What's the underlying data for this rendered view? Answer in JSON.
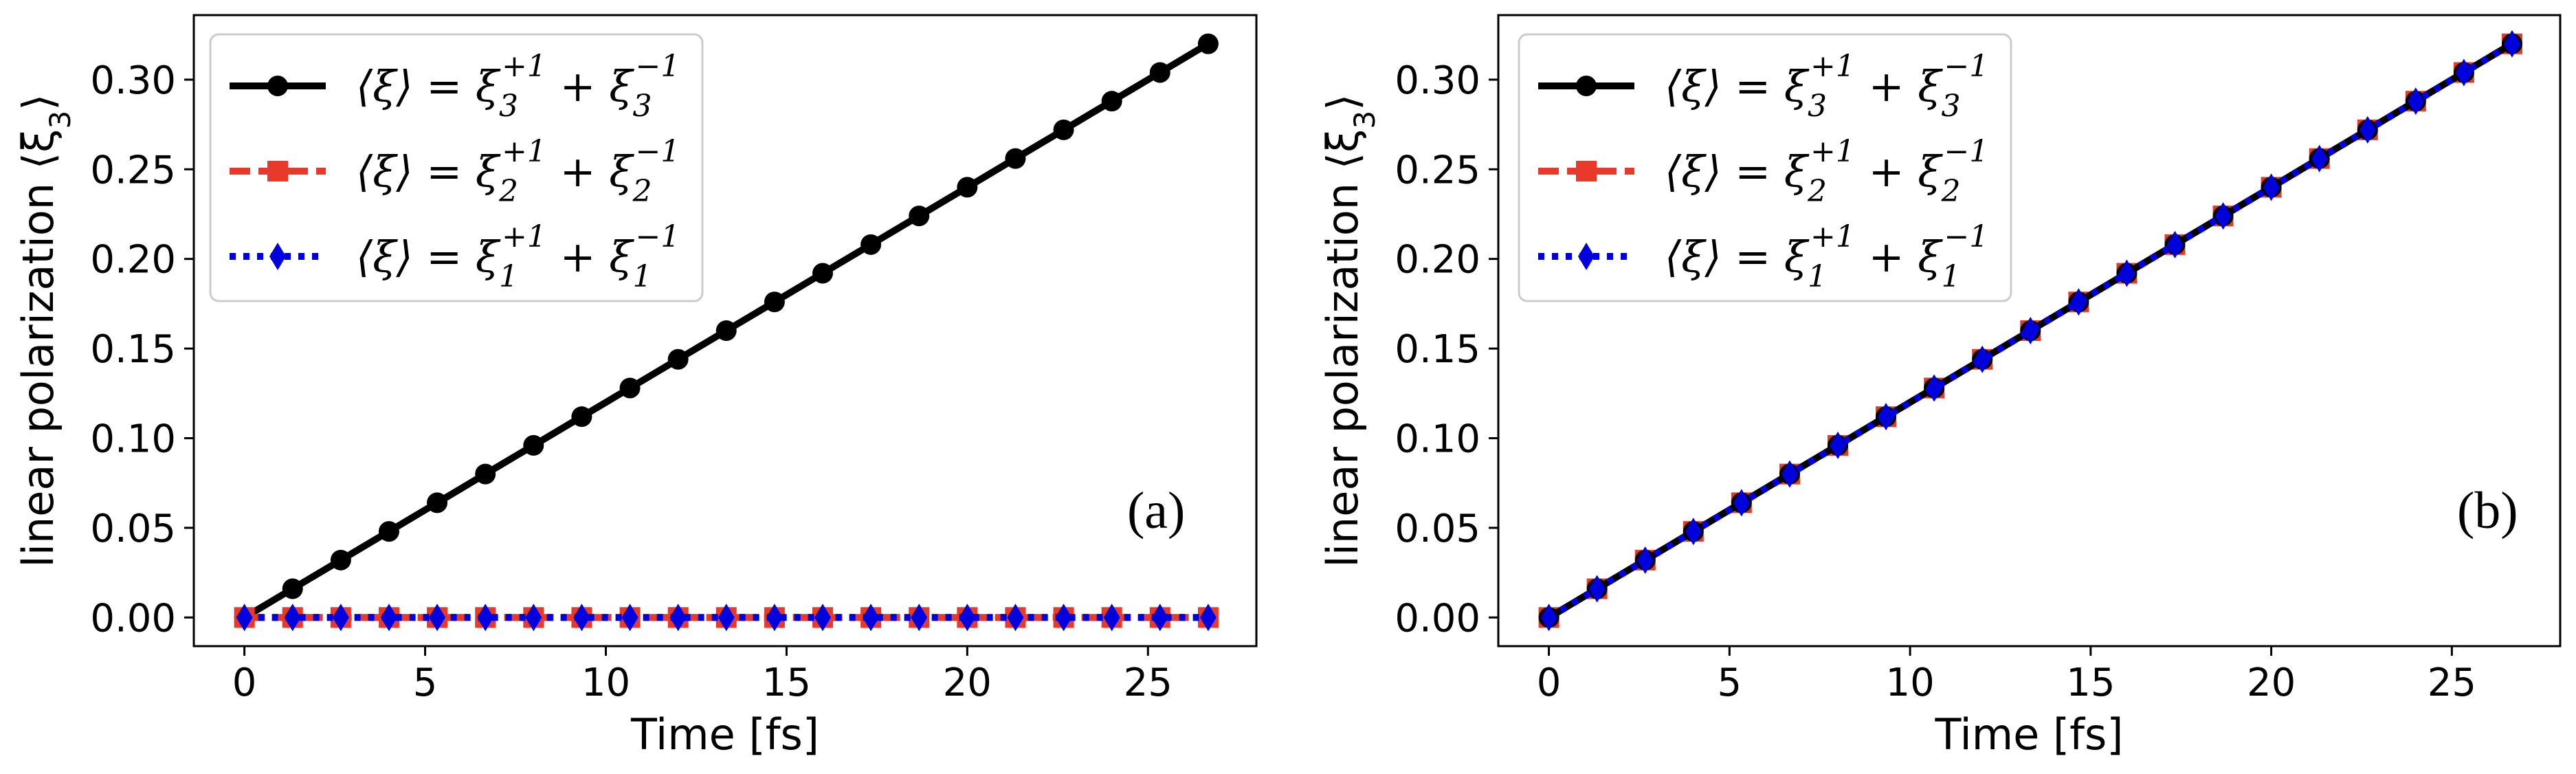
{
  "chart_data": [
    {
      "panel_label": "(a)",
      "type": "line",
      "xlabel": "Time [fs]",
      "ylabel": "linear polarization ⟨ξ",
      "ylabel_sub": "3",
      "ylabel_close": "⟩",
      "xlim": [
        -1.4,
        28.0
      ],
      "ylim": [
        -0.016,
        0.336
      ],
      "xticks": [
        0,
        5,
        10,
        15,
        20,
        25
      ],
      "yticks": [
        0.0,
        0.05,
        0.1,
        0.15,
        0.2,
        0.25,
        0.3
      ],
      "ytick_labels": [
        "0.00",
        "0.05",
        "0.10",
        "0.15",
        "0.20",
        "0.25",
        "0.30"
      ],
      "legend_position": "upper-left",
      "x": [
        0,
        1.333,
        2.667,
        4,
        5.333,
        6.667,
        8,
        9.333,
        10.667,
        12,
        13.333,
        14.667,
        16,
        17.333,
        18.667,
        20,
        21.333,
        22.667,
        24,
        25.333,
        26.667
      ],
      "series": [
        {
          "name": "xi3",
          "label_base": "⟨ξ⟩ = ξ",
          "label_sub1": "3",
          "label_sup1": "+1",
          "label_mid": " + ξ",
          "label_sub2": "3",
          "label_sup2": "−1",
          "color": "#000000",
          "style": "solid",
          "marker": "circle",
          "values": [
            0.0,
            0.016,
            0.032,
            0.048,
            0.064,
            0.08,
            0.096,
            0.112,
            0.128,
            0.144,
            0.16,
            0.176,
            0.192,
            0.208,
            0.224,
            0.24,
            0.256,
            0.272,
            0.288,
            0.304,
            0.32
          ]
        },
        {
          "name": "xi2",
          "label_base": "⟨ξ⟩ = ξ",
          "label_sub1": "2",
          "label_sup1": "+1",
          "label_mid": " + ξ",
          "label_sub2": "2",
          "label_sup2": "−1",
          "color": "#e8392a",
          "style": "dashed",
          "marker": "square",
          "values": [
            0,
            0,
            0,
            0,
            0,
            0,
            0,
            0,
            0,
            0,
            0,
            0,
            0,
            0,
            0,
            0,
            0,
            0,
            0,
            0,
            0
          ]
        },
        {
          "name": "xi1",
          "label_base": "⟨ξ⟩ = ξ",
          "label_sub1": "1",
          "label_sup1": "+1",
          "label_mid": " + ξ",
          "label_sub2": "1",
          "label_sup2": "−1",
          "color": "#0000dd",
          "style": "dotted",
          "marker": "diamond",
          "values": [
            0,
            0,
            0,
            0,
            0,
            0,
            0,
            0,
            0,
            0,
            0,
            0,
            0,
            0,
            0,
            0,
            0,
            0,
            0,
            0,
            0
          ]
        }
      ]
    },
    {
      "panel_label": "(b)",
      "type": "line",
      "xlabel": "Time [fs]",
      "ylabel": "linear polarization ⟨ξ",
      "ylabel_sub": "3",
      "ylabel_close": "⟩",
      "xlim": [
        -1.4,
        28.0
      ],
      "ylim": [
        -0.016,
        0.336
      ],
      "xticks": [
        0,
        5,
        10,
        15,
        20,
        25
      ],
      "yticks": [
        0.0,
        0.05,
        0.1,
        0.15,
        0.2,
        0.25,
        0.3
      ],
      "ytick_labels": [
        "0.00",
        "0.05",
        "0.10",
        "0.15",
        "0.20",
        "0.25",
        "0.30"
      ],
      "legend_position": "upper-left",
      "x": [
        0,
        1.333,
        2.667,
        4,
        5.333,
        6.667,
        8,
        9.333,
        10.667,
        12,
        13.333,
        14.667,
        16,
        17.333,
        18.667,
        20,
        21.333,
        22.667,
        24,
        25.333,
        26.667
      ],
      "series": [
        {
          "name": "xi3",
          "label_base": "⟨ξ⟩ = ξ",
          "label_sub1": "3",
          "label_sup1": "+1",
          "label_mid": " + ξ",
          "label_sub2": "3",
          "label_sup2": "−1",
          "color": "#000000",
          "style": "solid",
          "marker": "circle",
          "values": [
            0.0,
            0.016,
            0.032,
            0.048,
            0.064,
            0.08,
            0.096,
            0.112,
            0.128,
            0.144,
            0.16,
            0.176,
            0.192,
            0.208,
            0.224,
            0.24,
            0.256,
            0.272,
            0.288,
            0.304,
            0.32
          ]
        },
        {
          "name": "xi2",
          "label_base": "⟨ξ⟩ = ξ",
          "label_sub1": "2",
          "label_sup1": "+1",
          "label_mid": " + ξ",
          "label_sub2": "2",
          "label_sup2": "−1",
          "color": "#e8392a",
          "style": "dashed",
          "marker": "square",
          "values": [
            0.0,
            0.016,
            0.032,
            0.048,
            0.064,
            0.08,
            0.096,
            0.112,
            0.128,
            0.144,
            0.16,
            0.176,
            0.192,
            0.208,
            0.224,
            0.24,
            0.256,
            0.272,
            0.288,
            0.304,
            0.32
          ]
        },
        {
          "name": "xi1",
          "label_base": "⟨ξ⟩ = ξ",
          "label_sub1": "1",
          "label_sup1": "+1",
          "label_mid": " + ξ",
          "label_sub2": "1",
          "label_sup2": "−1",
          "color": "#0000dd",
          "style": "dotted",
          "marker": "diamond",
          "values": [
            0.0,
            0.016,
            0.032,
            0.048,
            0.064,
            0.08,
            0.096,
            0.112,
            0.128,
            0.144,
            0.16,
            0.176,
            0.192,
            0.208,
            0.224,
            0.24,
            0.256,
            0.272,
            0.288,
            0.304,
            0.32
          ]
        }
      ]
    }
  ]
}
